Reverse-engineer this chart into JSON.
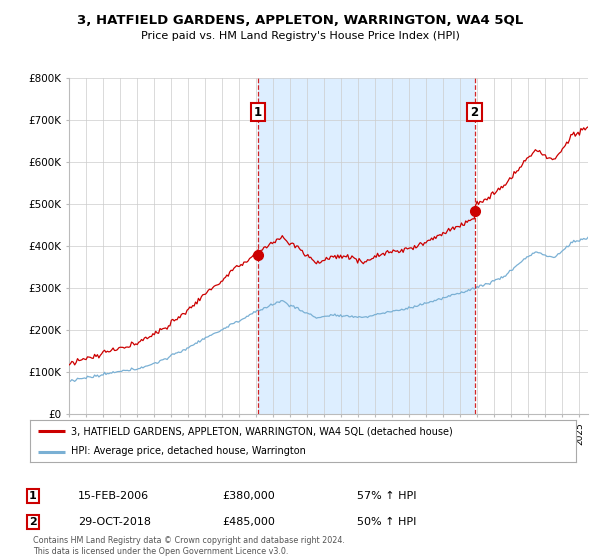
{
  "title": "3, HATFIELD GARDENS, APPLETON, WARRINGTON, WA4 5QL",
  "subtitle": "Price paid vs. HM Land Registry's House Price Index (HPI)",
  "legend_line1": "3, HATFIELD GARDENS, APPLETON, WARRINGTON, WA4 5QL (detached house)",
  "legend_line2": "HPI: Average price, detached house, Warrington",
  "annotation1_date": "15-FEB-2006",
  "annotation1_price": "£380,000",
  "annotation1_hpi": "57% ↑ HPI",
  "annotation2_date": "29-OCT-2018",
  "annotation2_price": "£485,000",
  "annotation2_hpi": "50% ↑ HPI",
  "footer": "Contains HM Land Registry data © Crown copyright and database right 2024.\nThis data is licensed under the Open Government Licence v3.0.",
  "sale1_x": 2006.12,
  "sale1_y": 380000,
  "sale2_x": 2018.83,
  "sale2_y": 485000,
  "ylim": [
    0,
    800000
  ],
  "xlim_start": 1995,
  "xlim_end": 2025.5,
  "red_color": "#cc0000",
  "blue_color": "#7ab0d4",
  "shade_color": "#ddeeff",
  "vline_color": "#cc0000",
  "bg_color": "#ffffff",
  "grid_color": "#cccccc"
}
